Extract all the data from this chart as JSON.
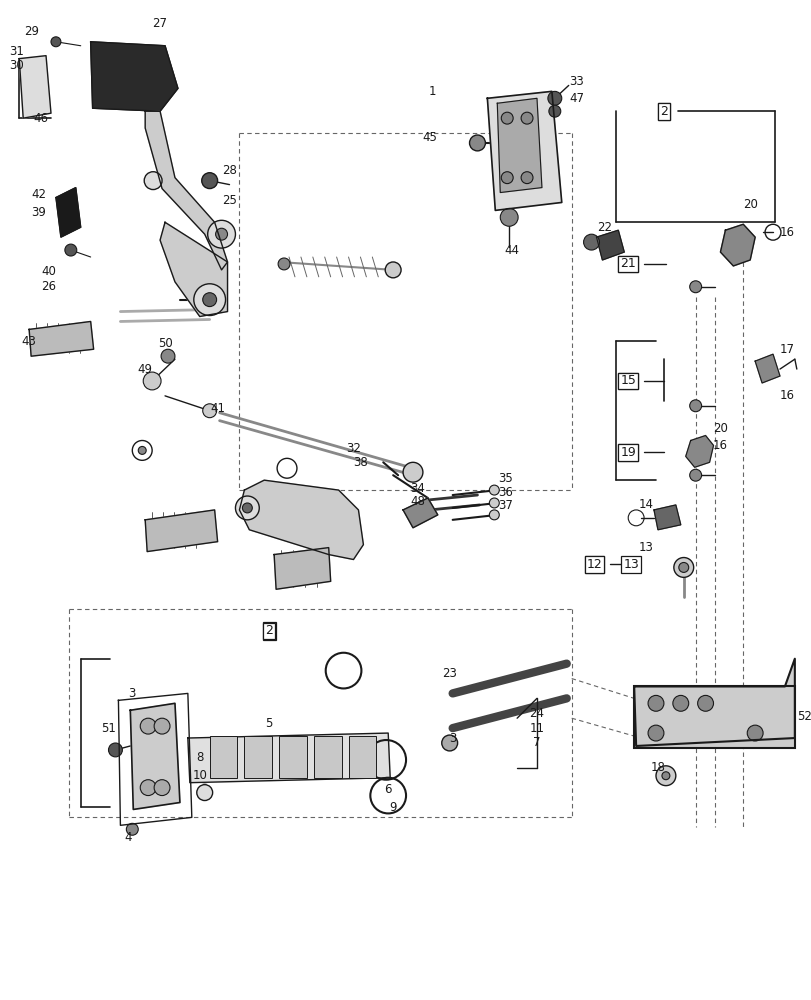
{
  "bg": "#f5f5f5",
  "lc": "#1a1a1a",
  "dc": "#666666",
  "fs": 8.5
}
